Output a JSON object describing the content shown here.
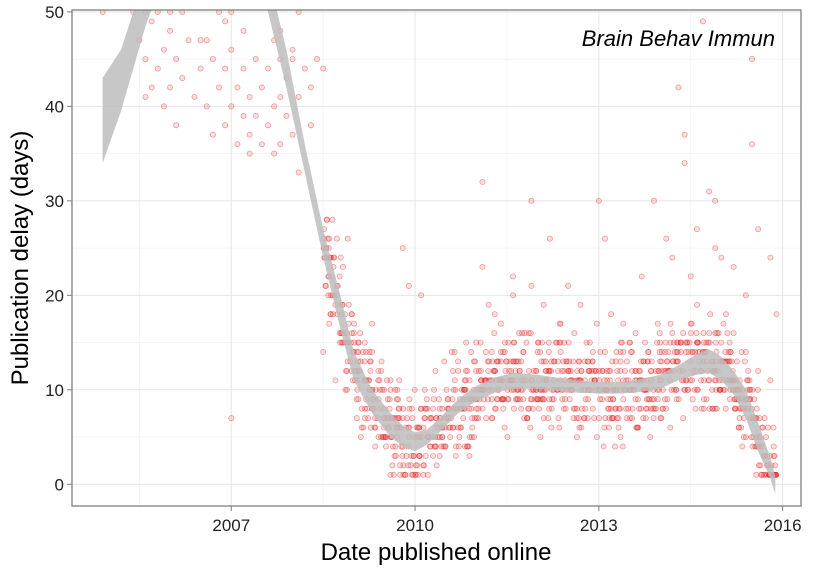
{
  "chart_data": {
    "type": "scatter",
    "title": "",
    "annotation": "Brain Behav Immun",
    "xlabel": "Date published online",
    "ylabel": "Publication delay (days)",
    "xlim": [
      2004.4,
      2016.3
    ],
    "ylim": [
      -2.3,
      50.2
    ],
    "x_ticks": [
      2007,
      2010,
      2013,
      2016
    ],
    "y_ticks": [
      0,
      10,
      20,
      30,
      40,
      50
    ],
    "grid": true,
    "legend": "none",
    "point_color": "#e41a1c",
    "band_color": "#bdbdbd",
    "points": [
      [
        2004.9,
        50
      ],
      [
        2005.4,
        50
      ],
      [
        2005.5,
        47
      ],
      [
        2005.6,
        45
      ],
      [
        2005.6,
        50
      ],
      [
        2005.7,
        42
      ],
      [
        2005.7,
        49
      ],
      [
        2005.8,
        44
      ],
      [
        2005.8,
        50
      ],
      [
        2005.9,
        40
      ],
      [
        2005.9,
        46
      ],
      [
        2006.0,
        42
      ],
      [
        2006.0,
        48
      ],
      [
        2006.0,
        50
      ],
      [
        2006.1,
        38
      ],
      [
        2006.1,
        45
      ],
      [
        2006.2,
        43
      ],
      [
        2006.2,
        50
      ],
      [
        2006.4,
        41
      ],
      [
        2006.5,
        44
      ],
      [
        2006.6,
        40
      ],
      [
        2006.6,
        47
      ],
      [
        2006.7,
        45
      ],
      [
        2006.8,
        50
      ],
      [
        2006.8,
        42
      ],
      [
        2006.9,
        38
      ],
      [
        2006.9,
        44
      ],
      [
        2006.9,
        49
      ],
      [
        2007.0,
        40
      ],
      [
        2007.0,
        46
      ],
      [
        2007.0,
        50
      ],
      [
        2007.1,
        36
      ],
      [
        2007.1,
        42
      ],
      [
        2007.2,
        39
      ],
      [
        2007.2,
        44
      ],
      [
        2007.2,
        48
      ],
      [
        2007.3,
        41
      ],
      [
        2007.3,
        37
      ],
      [
        2007.4,
        45
      ],
      [
        2007.4,
        39
      ],
      [
        2007.5,
        36
      ],
      [
        2007.5,
        42
      ],
      [
        2007.6,
        38
      ],
      [
        2007.6,
        44
      ],
      [
        2007.7,
        35
      ],
      [
        2007.7,
        40
      ],
      [
        2007.7,
        47
      ],
      [
        2007.8,
        41
      ],
      [
        2007.8,
        36
      ],
      [
        2007.9,
        43
      ],
      [
        2007.9,
        39
      ],
      [
        2008.0,
        45
      ],
      [
        2008.0,
        37
      ],
      [
        2008.1,
        33
      ],
      [
        2008.1,
        41
      ],
      [
        2008.2,
        44
      ],
      [
        2008.3,
        42
      ],
      [
        2008.3,
        38
      ],
      [
        2008.4,
        45
      ],
      [
        2008.5,
        44
      ],
      [
        2006.3,
        47
      ],
      [
        2007.8,
        48
      ],
      [
        2008.1,
        50
      ],
      [
        2008.0,
        46
      ],
      [
        2007.8,
        45
      ],
      [
        2006.5,
        47
      ],
      [
        2005.6,
        41
      ],
      [
        2006.7,
        37
      ],
      [
        2007.3,
        35
      ],
      [
        2007.0,
        7
      ],
      [
        2008.9,
        26
      ],
      [
        2009.8,
        25
      ],
      [
        2009.9,
        21
      ],
      [
        2010.1,
        20
      ],
      [
        2011.1,
        32
      ],
      [
        2011.1,
        23
      ],
      [
        2011.3,
        18
      ],
      [
        2011.6,
        22
      ],
      [
        2011.9,
        21
      ],
      [
        2011.9,
        30
      ],
      [
        2012.2,
        26
      ],
      [
        2012.5,
        21
      ],
      [
        2012.7,
        19
      ],
      [
        2013.0,
        30
      ],
      [
        2013.1,
        26
      ],
      [
        2013.2,
        18
      ],
      [
        2013.4,
        17
      ],
      [
        2013.7,
        22
      ],
      [
        2013.9,
        30
      ],
      [
        2014.1,
        26
      ],
      [
        2014.3,
        42
      ],
      [
        2014.4,
        37
      ],
      [
        2014.4,
        34
      ],
      [
        2014.5,
        22
      ],
      [
        2014.6,
        27
      ],
      [
        2014.7,
        49
      ],
      [
        2014.8,
        31
      ],
      [
        2014.9,
        25
      ],
      [
        2015.0,
        24
      ],
      [
        2015.2,
        23
      ],
      [
        2015.4,
        20
      ],
      [
        2015.5,
        36
      ],
      [
        2015.5,
        45
      ],
      [
        2015.6,
        27
      ],
      [
        2015.8,
        24
      ],
      [
        2015.9,
        18
      ],
      [
        2014.9,
        30
      ],
      [
        2014.2,
        24
      ],
      [
        2015.1,
        16
      ],
      [
        2008.5,
        14
      ],
      [
        2008.6,
        17
      ],
      [
        2008.7,
        11
      ],
      [
        2008.8,
        15
      ],
      [
        2008.9,
        13
      ],
      [
        2009.0,
        16
      ],
      [
        2009.1,
        12
      ],
      [
        2009.2,
        14
      ],
      [
        2009.3,
        10
      ],
      [
        2009.4,
        12
      ],
      [
        2009.5,
        8
      ],
      [
        2009.6,
        10
      ],
      [
        2009.7,
        6
      ],
      [
        2009.8,
        7
      ],
      [
        2010.2,
        8
      ],
      [
        2010.6,
        14
      ],
      [
        2010.8,
        10
      ],
      [
        2011.0,
        15
      ],
      [
        2011.2,
        19
      ],
      [
        2011.4,
        17
      ],
      [
        2011.5,
        13
      ],
      [
        2011.7,
        16
      ],
      [
        2011.8,
        11
      ],
      [
        2012.0,
        14
      ],
      [
        2012.1,
        19
      ],
      [
        2012.3,
        15
      ],
      [
        2012.4,
        12
      ],
      [
        2012.6,
        16
      ],
      [
        2012.8,
        15
      ],
      [
        2012.9,
        13
      ],
      [
        2013.1,
        14
      ],
      [
        2013.3,
        12
      ],
      [
        2013.5,
        15
      ],
      [
        2013.6,
        16
      ],
      [
        2013.8,
        13
      ],
      [
        2014.0,
        15
      ],
      [
        2014.2,
        16
      ],
      [
        2014.5,
        17
      ],
      [
        2014.6,
        15
      ],
      [
        2014.7,
        14
      ],
      [
        2015.0,
        15
      ],
      [
        2015.2,
        16
      ],
      [
        2015.4,
        14
      ],
      [
        2015.6,
        12
      ],
      [
        2015.8,
        11
      ],
      [
        2008.7,
        19
      ],
      [
        2009.3,
        17
      ],
      [
        2011.6,
        20
      ]
    ],
    "band_x": [
      2004.9,
      2005.2,
      2005.4,
      2005.6,
      2005.8,
      2006.0,
      2006.5,
      2007.0,
      2007.3,
      2007.6,
      2007.9,
      2008.2,
      2008.5,
      2008.8,
      2009.0,
      2009.3,
      2009.6,
      2009.8,
      2010.0,
      2010.2,
      2010.4,
      2010.7,
      2011.0,
      2011.3,
      2011.6,
      2012.0,
      2012.3,
      2012.6,
      2013.0,
      2013.3,
      2013.6,
      2014.0,
      2014.3,
      2014.6,
      2014.8,
      2015.0,
      2015.2,
      2015.4,
      2015.6,
      2015.8,
      2015.88
    ],
    "band_lower": [
      34,
      39.5,
      44,
      48.5,
      52,
      54,
      56,
      57,
      55,
      50,
      42,
      33,
      24,
      16,
      11,
      7.5,
      5,
      4,
      3.5,
      4.2,
      5.5,
      7.5,
      8.8,
      9.7,
      10.1,
      10.1,
      9.9,
      9.7,
      9.6,
      9.6,
      9.7,
      10.1,
      11,
      11.6,
      11.8,
      11,
      9.5,
      7,
      3.5,
      0.6,
      -1
    ],
    "band_upper": [
      43,
      46,
      50,
      54,
      57,
      59,
      61,
      61,
      59,
      54,
      46,
      36,
      27,
      19.5,
      14,
      10,
      7.5,
      6.2,
      5.5,
      5.8,
      7,
      9,
      10.4,
      11.3,
      11.8,
      11.6,
      11.3,
      11,
      10.8,
      10.8,
      11,
      11.6,
      12.6,
      13.8,
      14.3,
      13.5,
      12,
      10,
      6.5,
      2.8,
      0.8
    ]
  }
}
